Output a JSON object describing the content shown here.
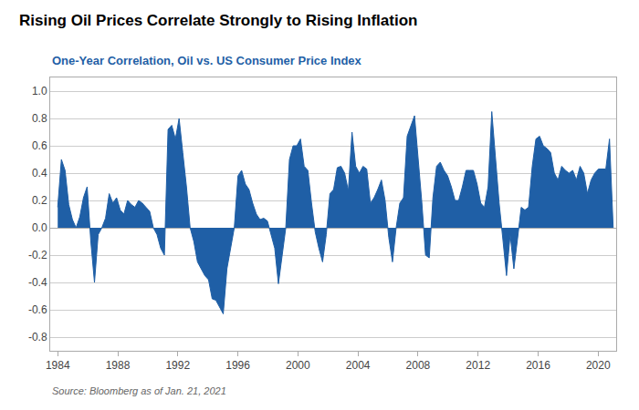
{
  "chart_data": {
    "type": "area",
    "title": "Rising Oil Prices Correlate Strongly to Rising Inflation",
    "subtitle": "One-Year Correlation, Oil vs. US Consumer Price Index",
    "annotations": [
      "Source: Bloomberg as of Jan. 21, 2021"
    ],
    "color": "#1F5FA6",
    "grid": "y",
    "xlim": [
      1983.5,
      2021.2
    ],
    "xticks": [
      1984,
      1988,
      1992,
      1996,
      2000,
      2004,
      2008,
      2012,
      2016,
      2020
    ],
    "ylim": [
      -0.9,
      1.1
    ],
    "yticks": [
      -0.8,
      -0.6,
      -0.4,
      -0.2,
      {
        "value": 0.0,
        "label": "0.0"
      },
      0.2,
      0.4,
      0.6,
      0.8,
      {
        "value": 1.0,
        "label": "1.0"
      }
    ],
    "x": [
      1984,
      1984.245,
      1984.49,
      1984.735,
      1984.98,
      1985.225,
      1985.47,
      1985.715,
      1985.96,
      1986.205,
      1986.45,
      1986.695,
      1986.94,
      1987.185,
      1987.43,
      1987.675,
      1987.921,
      1988.166,
      1988.411,
      1988.656,
      1988.901,
      1989.146,
      1989.391,
      1989.636,
      1989.881,
      1990.126,
      1990.371,
      1990.616,
      1990.861,
      1991.106,
      1991.351,
      1991.596,
      1991.841,
      1992.086,
      1992.331,
      1992.576,
      1992.821,
      1993.066,
      1993.311,
      1993.556,
      1993.801,
      1994.046,
      1994.291,
      1994.536,
      1994.781,
      1995.026,
      1995.272,
      1995.517,
      1995.762,
      1996.007,
      1996.252,
      1996.497,
      1996.742,
      1996.987,
      1997.232,
      1997.477,
      1997.722,
      1997.967,
      1998.212,
      1998.457,
      1998.702,
      1998.947,
      1999.192,
      1999.437,
      1999.682,
      1999.927,
      2000.172,
      2000.417,
      2000.662,
      2000.907,
      2001.152,
      2001.397,
      2001.642,
      2001.887,
      2002.132,
      2002.377,
      2002.623,
      2002.868,
      2003.113,
      2003.358,
      2003.603,
      2003.848,
      2004.093,
      2004.338,
      2004.583,
      2004.828,
      2005.073,
      2005.318,
      2005.563,
      2005.808,
      2006.053,
      2006.298,
      2006.543,
      2006.788,
      2007.033,
      2007.278,
      2007.523,
      2007.768,
      2008.013,
      2008.258,
      2008.503,
      2008.748,
      2008.993,
      2009.238,
      2009.483,
      2009.728,
      2009.974,
      2010.219,
      2010.464,
      2010.709,
      2010.954,
      2011.199,
      2011.444,
      2011.689,
      2011.934,
      2012.179,
      2012.424,
      2012.669,
      2012.914,
      2013.159,
      2013.404,
      2013.649,
      2013.894,
      2014.139,
      2014.384,
      2014.629,
      2014.874,
      2015.119,
      2015.364,
      2015.609,
      2015.854,
      2016.099,
      2016.344,
      2016.589,
      2016.834,
      2017.079,
      2017.325,
      2017.57,
      2017.815,
      2018.06,
      2018.305,
      2018.55,
      2018.795,
      2019.04,
      2019.285,
      2019.53,
      2019.775,
      2020.02,
      2020.265,
      2020.51,
      2020.755,
      2021.0
    ],
    "values": [
      0.15,
      0.5,
      0.42,
      0.17,
      0.06,
      0.0,
      0.08,
      0.22,
      0.3,
      -0.1,
      -0.4,
      -0.05,
      0.0,
      0.07,
      0.25,
      0.18,
      0.22,
      0.13,
      0.1,
      0.2,
      0.17,
      0.15,
      0.2,
      0.18,
      0.15,
      0.12,
      0.0,
      -0.05,
      -0.15,
      -0.2,
      0.72,
      0.75,
      0.65,
      0.8,
      0.55,
      0.3,
      0.0,
      -0.1,
      -0.25,
      -0.3,
      -0.35,
      -0.38,
      -0.52,
      -0.53,
      -0.58,
      -0.63,
      -0.3,
      -0.15,
      0.0,
      0.38,
      0.42,
      0.32,
      0.28,
      0.18,
      0.1,
      0.06,
      0.07,
      0.05,
      -0.05,
      -0.15,
      -0.41,
      -0.2,
      0.0,
      0.5,
      0.6,
      0.6,
      0.65,
      0.45,
      0.42,
      0.18,
      -0.03,
      -0.15,
      -0.25,
      -0.05,
      0.25,
      0.28,
      0.44,
      0.45,
      0.4,
      0.27,
      0.7,
      0.45,
      0.4,
      0.45,
      0.43,
      0.18,
      0.22,
      0.28,
      0.35,
      0.2,
      -0.07,
      -0.25,
      0.0,
      0.18,
      0.22,
      0.67,
      0.75,
      0.82,
      0.5,
      0.18,
      -0.2,
      -0.22,
      0.22,
      0.45,
      0.48,
      0.42,
      0.38,
      0.3,
      0.2,
      0.2,
      0.3,
      0.42,
      0.42,
      0.42,
      0.32,
      0.18,
      0.15,
      0.3,
      0.85,
      0.5,
      0.18,
      -0.08,
      -0.35,
      -0.05,
      -0.3,
      -0.08,
      0.15,
      0.13,
      0.15,
      0.45,
      0.65,
      0.67,
      0.6,
      0.58,
      0.55,
      0.4,
      0.35,
      0.45,
      0.42,
      0.4,
      0.42,
      0.35,
      0.45,
      0.4,
      0.25,
      0.35,
      0.4,
      0.43,
      0.43,
      0.43,
      0.65,
      0.0
    ]
  }
}
